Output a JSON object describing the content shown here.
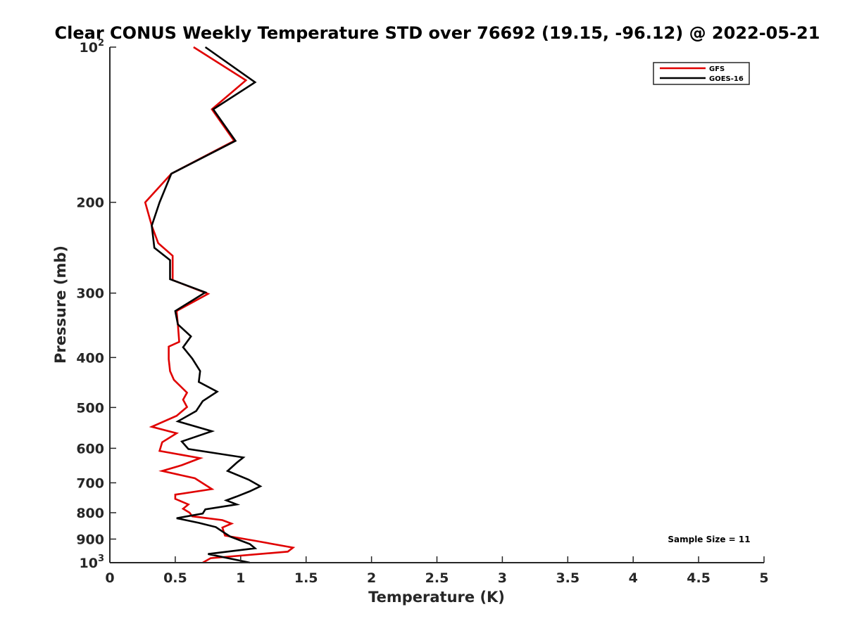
{
  "chart_data": {
    "type": "line",
    "title": "Clear CONUS Weekly Temperature STD over 76692 (19.15, -96.12) @ 2022-05-21",
    "xlabel": "Temperature (K)",
    "ylabel": "Pressure (mb)",
    "xlim": [
      0,
      5
    ],
    "ylim": [
      100,
      1000
    ],
    "y_scale": "log",
    "y_reversed": true,
    "x_ticks": [
      "0",
      "0.5",
      "1",
      "1.5",
      "2",
      "2.5",
      "3",
      "3.5",
      "4",
      "4.5",
      "5"
    ],
    "y_ticks": [
      {
        "value": 100,
        "base": "10",
        "exp": "2"
      },
      {
        "value": 200,
        "label": "200"
      },
      {
        "value": 300,
        "label": "300"
      },
      {
        "value": 400,
        "label": "400"
      },
      {
        "value": 500,
        "label": "500"
      },
      {
        "value": 600,
        "label": "600"
      },
      {
        "value": 700,
        "label": "700"
      },
      {
        "value": 800,
        "label": "800"
      },
      {
        "value": 900,
        "label": "900"
      },
      {
        "value": 1000,
        "base": "10",
        "exp": "3"
      }
    ],
    "grid": false,
    "legend_position": "top-right",
    "annotation": "Sample Size = 11",
    "series": [
      {
        "name": "GFS",
        "color": "#e00000",
        "points": [
          [
            0.64,
            100
          ],
          [
            1.04,
            116
          ],
          [
            0.78,
            132
          ],
          [
            0.95,
            152
          ],
          [
            0.47,
            176
          ],
          [
            0.27,
            200
          ],
          [
            0.32,
            222
          ],
          [
            0.37,
            240
          ],
          [
            0.48,
            254
          ],
          [
            0.48,
            283
          ],
          [
            0.75,
            301
          ],
          [
            0.51,
            325
          ],
          [
            0.52,
            345
          ],
          [
            0.53,
            373
          ],
          [
            0.45,
            381
          ],
          [
            0.45,
            403
          ],
          [
            0.46,
            425
          ],
          [
            0.49,
            442
          ],
          [
            0.59,
            468
          ],
          [
            0.56,
            483
          ],
          [
            0.59,
            499
          ],
          [
            0.51,
            519
          ],
          [
            0.32,
            545
          ],
          [
            0.51,
            561
          ],
          [
            0.4,
            584
          ],
          [
            0.38,
            607
          ],
          [
            0.69,
            627
          ],
          [
            0.55,
            647
          ],
          [
            0.4,
            664
          ],
          [
            0.65,
            686
          ],
          [
            0.78,
            720
          ],
          [
            0.5,
            738
          ],
          [
            0.5,
            752
          ],
          [
            0.6,
            771
          ],
          [
            0.56,
            786
          ],
          [
            0.61,
            800
          ],
          [
            0.63,
            813
          ],
          [
            0.86,
            827
          ],
          [
            0.93,
            840
          ],
          [
            0.86,
            855
          ],
          [
            0.88,
            886
          ],
          [
            1.11,
            907
          ],
          [
            1.4,
            935
          ],
          [
            1.36,
            952
          ],
          [
            0.77,
            980
          ],
          [
            0.71,
            1000
          ]
        ]
      },
      {
        "name": "GOES-16",
        "color": "#000000",
        "points": [
          [
            0.73,
            100
          ],
          [
            1.11,
            117
          ],
          [
            0.79,
            132
          ],
          [
            0.96,
            152
          ],
          [
            0.47,
            176
          ],
          [
            0.38,
            200
          ],
          [
            0.32,
            222
          ],
          [
            0.34,
            245
          ],
          [
            0.46,
            259
          ],
          [
            0.46,
            282
          ],
          [
            0.73,
            299
          ],
          [
            0.5,
            325
          ],
          [
            0.52,
            345
          ],
          [
            0.62,
            364
          ],
          [
            0.56,
            382
          ],
          [
            0.63,
            402
          ],
          [
            0.69,
            425
          ],
          [
            0.68,
            446
          ],
          [
            0.82,
            466
          ],
          [
            0.71,
            486
          ],
          [
            0.66,
            508
          ],
          [
            0.52,
            532
          ],
          [
            0.78,
            556
          ],
          [
            0.55,
            582
          ],
          [
            0.6,
            602
          ],
          [
            1.02,
            625
          ],
          [
            0.97,
            640
          ],
          [
            0.9,
            664
          ],
          [
            1.06,
            690
          ],
          [
            1.15,
            711
          ],
          [
            1.07,
            727
          ],
          [
            0.97,
            744
          ],
          [
            0.89,
            757
          ],
          [
            0.97,
            771
          ],
          [
            0.73,
            788
          ],
          [
            0.71,
            803
          ],
          [
            0.51,
            820
          ],
          [
            0.68,
            837
          ],
          [
            0.81,
            853
          ],
          [
            0.86,
            870
          ],
          [
            0.92,
            890
          ],
          [
            1.07,
            920
          ],
          [
            1.11,
            938
          ],
          [
            0.75,
            962
          ],
          [
            1.07,
            1000
          ]
        ]
      }
    ]
  }
}
